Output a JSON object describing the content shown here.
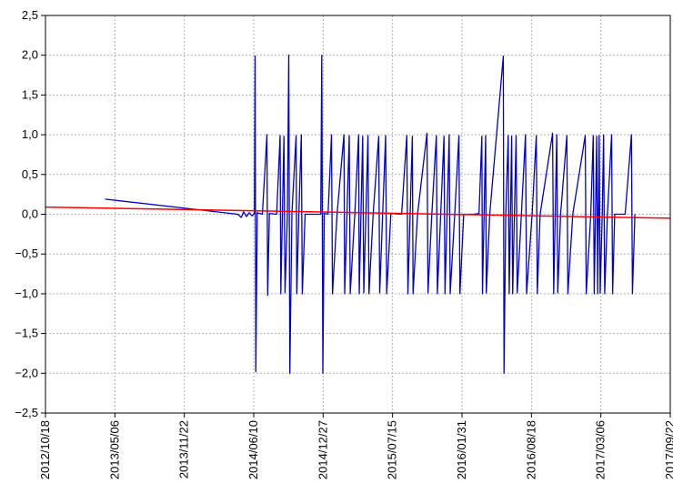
{
  "chart_data": {
    "type": "line",
    "title": "",
    "xlabel": "",
    "ylabel": "",
    "x_ticks": [
      "2012/10/18",
      "2013/05/06",
      "2013/11/22",
      "2014/06/10",
      "2014/12/27",
      "2015/07/15",
      "2016/01/31",
      "2016/08/18",
      "2017/03/06",
      "2017/09/22"
    ],
    "y_ticks": [
      "2,5",
      "2,0",
      "1,5",
      "1,0",
      "0,5",
      "0,0",
      "−0,5",
      "−1,0",
      "−1,5",
      "−2,0",
      "−2,5"
    ],
    "xlim": [
      "2012-10-18",
      "2017-09-22"
    ],
    "ylim": [
      -2.5,
      2.5
    ],
    "grid": true,
    "series": [
      {
        "color": "#0000cc",
        "note": "observed series (dates, values); dense spikes at +/-1 and +/-2",
        "points": [
          [
            "2013-04-08",
            0.19
          ],
          [
            "2014-04-25",
            0.0
          ],
          [
            "2014-05-05",
            -0.04
          ],
          [
            "2014-05-12",
            0.03
          ],
          [
            "2014-05-20",
            -0.03
          ],
          [
            "2014-05-28",
            0.02
          ],
          [
            "2014-06-05",
            -0.02
          ],
          [
            "2014-06-12",
            0.01
          ],
          [
            "2014-06-14",
            1.99
          ],
          [
            "2014-06-16",
            -1.98
          ],
          [
            "2014-06-20",
            0.02
          ],
          [
            "2014-07-05",
            0.0
          ],
          [
            "2014-07-18",
            1.0
          ],
          [
            "2014-07-20",
            -1.02
          ],
          [
            "2014-07-25",
            0.01
          ],
          [
            "2014-08-15",
            0.0
          ],
          [
            "2014-08-25",
            0.99
          ],
          [
            "2014-08-27",
            -1.0
          ],
          [
            "2014-09-05",
            0.98
          ],
          [
            "2014-09-08",
            -0.99
          ],
          [
            "2014-09-15",
            0.0
          ],
          [
            "2014-09-19",
            2.0
          ],
          [
            "2014-09-22",
            -2.0
          ],
          [
            "2014-09-28",
            0.02
          ],
          [
            "2014-10-10",
            0.99
          ],
          [
            "2014-10-12",
            -1.0
          ],
          [
            "2014-10-18",
            0.0
          ],
          [
            "2014-10-25",
            1.0
          ],
          [
            "2014-10-28",
            -1.0
          ],
          [
            "2014-11-05",
            0.0
          ],
          [
            "2014-12-20",
            0.0
          ],
          [
            "2014-12-23",
            2.0
          ],
          [
            "2014-12-26",
            -2.0
          ],
          [
            "2014-12-30",
            0.01
          ],
          [
            "2015-01-10",
            0.0
          ],
          [
            "2015-01-20",
            1.0
          ],
          [
            "2015-01-23",
            -1.0
          ],
          [
            "2015-02-05",
            0.0
          ],
          [
            "2015-02-25",
            1.0
          ],
          [
            "2015-02-27",
            -1.0
          ],
          [
            "2015-03-12",
            0.99
          ],
          [
            "2015-03-15",
            -1.0
          ],
          [
            "2015-03-28",
            0.0
          ],
          [
            "2015-04-08",
            1.0
          ],
          [
            "2015-04-10",
            -1.0
          ],
          [
            "2015-04-20",
            0.98
          ],
          [
            "2015-04-23",
            -0.99
          ],
          [
            "2015-05-05",
            0.99
          ],
          [
            "2015-05-08",
            -1.0
          ],
          [
            "2015-05-20",
            0.0
          ],
          [
            "2015-06-05",
            0.98
          ],
          [
            "2015-06-08",
            -0.99
          ],
          [
            "2015-06-25",
            0.99
          ],
          [
            "2015-06-28",
            -1.0
          ],
          [
            "2015-07-10",
            0.01
          ],
          [
            "2015-08-10",
            0.0
          ],
          [
            "2015-08-25",
            0.99
          ],
          [
            "2015-08-28",
            -1.0
          ],
          [
            "2015-09-10",
            0.98
          ],
          [
            "2015-09-12",
            -1.0
          ],
          [
            "2015-09-25",
            0.0
          ],
          [
            "2015-10-22",
            1.02
          ],
          [
            "2015-10-25",
            -0.99
          ],
          [
            "2015-11-05",
            0.0
          ],
          [
            "2015-11-18",
            0.99
          ],
          [
            "2015-11-21",
            -1.0
          ],
          [
            "2015-12-10",
            0.98
          ],
          [
            "2015-12-13",
            -1.0
          ],
          [
            "2015-12-25",
            1.0
          ],
          [
            "2015-12-28",
            -1.0
          ],
          [
            "2016-01-10",
            0.0
          ],
          [
            "2016-01-22",
            0.99
          ],
          [
            "2016-01-25",
            -1.0
          ],
          [
            "2016-02-05",
            0.0
          ],
          [
            "2016-03-05",
            0.0
          ],
          [
            "2016-03-20",
            0.01
          ],
          [
            "2016-03-28",
            0.98
          ],
          [
            "2016-03-30",
            -1.0
          ],
          [
            "2016-04-08",
            0.99
          ],
          [
            "2016-04-10",
            -0.99
          ],
          [
            "2016-04-20",
            0.0
          ],
          [
            "2016-05-29",
            1.99
          ],
          [
            "2016-05-31",
            -2.0
          ],
          [
            "2016-06-05",
            0.0
          ],
          [
            "2016-06-12",
            0.99
          ],
          [
            "2016-06-15",
            -1.0
          ],
          [
            "2016-06-22",
            0.98
          ],
          [
            "2016-06-25",
            -1.0
          ],
          [
            "2016-07-05",
            0.99
          ],
          [
            "2016-07-08",
            -0.99
          ],
          [
            "2016-07-20",
            0.0
          ],
          [
            "2016-08-01",
            1.0
          ],
          [
            "2016-08-04",
            -1.0
          ],
          [
            "2016-08-20",
            0.0
          ],
          [
            "2016-09-01",
            0.99
          ],
          [
            "2016-09-04",
            -1.0
          ],
          [
            "2016-09-12",
            0.0
          ],
          [
            "2016-10-18",
            1.02
          ],
          [
            "2016-10-21",
            -1.0
          ],
          [
            "2016-10-30",
            1.0
          ],
          [
            "2016-11-02",
            -0.99
          ],
          [
            "2016-11-10",
            0.0
          ],
          [
            "2016-11-28",
            0.99
          ],
          [
            "2016-12-01",
            -1.0
          ],
          [
            "2016-12-15",
            0.0
          ],
          [
            "2017-01-20",
            0.99
          ],
          [
            "2017-01-23",
            -1.0
          ],
          [
            "2017-02-05",
            0.0
          ],
          [
            "2017-02-12",
            0.99
          ],
          [
            "2017-02-15",
            -1.0
          ],
          [
            "2017-02-22",
            0.98
          ],
          [
            "2017-02-25",
            -1.0
          ],
          [
            "2017-03-01",
            0.99
          ],
          [
            "2017-03-04",
            -0.99
          ],
          [
            "2017-03-10",
            0.0
          ],
          [
            "2017-03-14",
            1.0
          ],
          [
            "2017-03-17",
            -1.0
          ],
          [
            "2017-03-25",
            0.0
          ],
          [
            "2017-04-06",
            1.0
          ],
          [
            "2017-04-09",
            -1.0
          ],
          [
            "2017-04-15",
            0.0
          ],
          [
            "2017-05-15",
            0.0
          ],
          [
            "2017-06-02",
            1.0
          ],
          [
            "2017-06-05",
            -1.0
          ],
          [
            "2017-06-12",
            0.0
          ]
        ]
      },
      {
        "color": "#ff0000",
        "note": "linear trend line",
        "points": [
          [
            "2012-10-18",
            0.09
          ],
          [
            "2017-09-22",
            -0.05
          ]
        ]
      }
    ]
  }
}
